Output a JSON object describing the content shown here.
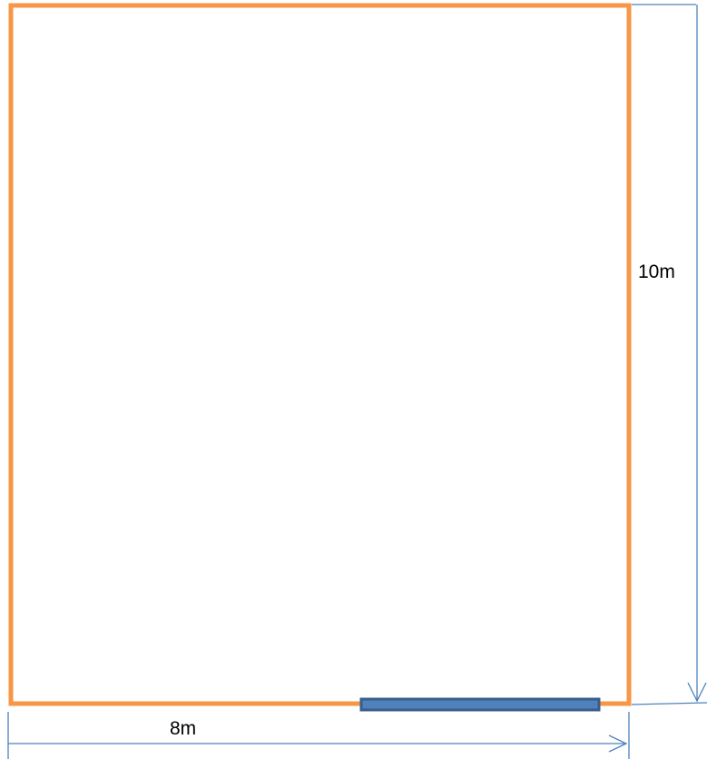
{
  "diagram": {
    "room_outline_color": "#F79646",
    "dimension_line_color": "#4F81BD",
    "door_fill_color": "#4F81BD",
    "door_border_color": "#385D8A",
    "height_label": "10m",
    "width_label": "8m"
  }
}
